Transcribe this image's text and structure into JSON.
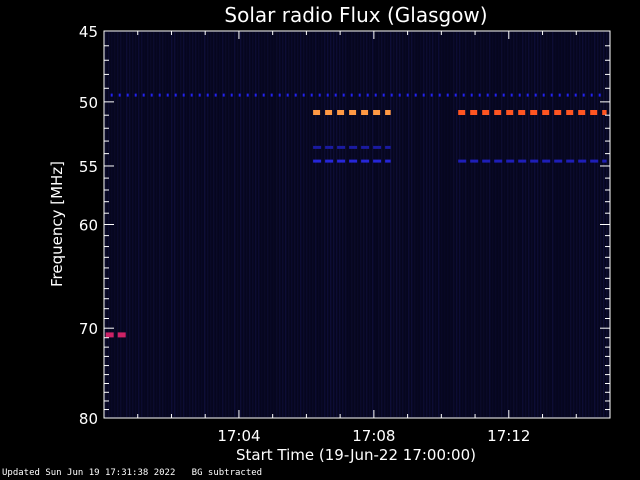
{
  "footer": {
    "updated": "Updated Sun Jun 19 17:31:38 2022",
    "bg_note": "BG subtracted"
  },
  "chart_data": {
    "type": "heatmap",
    "title": "Solar radio Flux (Glasgow)",
    "xlabel": "Start Time (19-Jun-22 17:00:00)",
    "ylabel": "Frequency [MHz]",
    "x_unit": "minutes after 17:00:00",
    "xlim": [
      0,
      15
    ],
    "ylim": [
      45,
      80
    ],
    "y_scale": "log",
    "y_inverted": true,
    "x_ticks": [
      {
        "value": 4,
        "label": "17:04"
      },
      {
        "value": 8,
        "label": "17:08"
      },
      {
        "value": 12,
        "label": "17:12"
      }
    ],
    "y_ticks": [
      {
        "value": 45,
        "label": "45"
      },
      {
        "value": 50,
        "label": "50"
      },
      {
        "value": 55,
        "label": "55"
      },
      {
        "value": 60,
        "label": "60"
      },
      {
        "value": 70,
        "label": "70"
      },
      {
        "value": 80,
        "label": "80"
      }
    ],
    "background_color": "#06061e",
    "emission_features": [
      {
        "name": "continuous band",
        "freq_mhz": 49.5,
        "t_start": 0.2,
        "t_end": 14.9,
        "level": "low",
        "color": "#2222ee"
      },
      {
        "name": "interference band A",
        "freq_mhz": 50.8,
        "t_start": 6.2,
        "t_end": 8.5,
        "level": "high",
        "color": "#ff9944"
      },
      {
        "name": "interference band B",
        "freq_mhz": 50.8,
        "t_start": 10.5,
        "t_end": 14.9,
        "level": "high",
        "color": "#ff5522"
      },
      {
        "name": "weak band A",
        "freq_mhz": 53.5,
        "t_start": 6.2,
        "t_end": 8.5,
        "level": "low",
        "color": "#1a1aa0"
      },
      {
        "name": "weak band B",
        "freq_mhz": 54.6,
        "t_start": 6.2,
        "t_end": 8.5,
        "level": "low",
        "color": "#2626d8"
      },
      {
        "name": "weak band C",
        "freq_mhz": 54.6,
        "t_start": 10.5,
        "t_end": 14.9,
        "level": "low",
        "color": "#1e1eb8"
      },
      {
        "name": "spot",
        "freq_mhz": 70.7,
        "t_start": 0.05,
        "t_end": 0.65,
        "level": "medium",
        "color": "#cc2266"
      }
    ]
  }
}
